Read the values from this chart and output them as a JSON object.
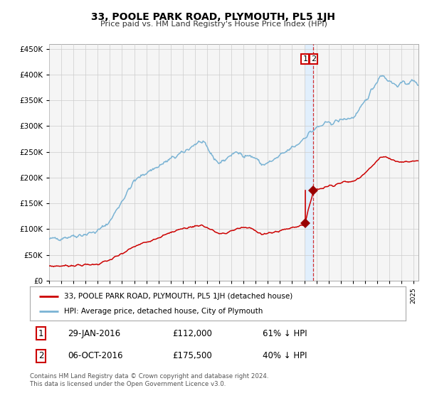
{
  "title": "33, POOLE PARK ROAD, PLYMOUTH, PL5 1JH",
  "subtitle": "Price paid vs. HM Land Registry's House Price Index (HPI)",
  "legend_label_1": "33, POOLE PARK ROAD, PLYMOUTH, PL5 1JH (detached house)",
  "legend_label_2": "HPI: Average price, detached house, City of Plymouth",
  "transaction_1_date": "29-JAN-2016",
  "transaction_1_price": "£112,000",
  "transaction_1_hpi": "61% ↓ HPI",
  "transaction_2_date": "06-OCT-2016",
  "transaction_2_price": "£175,500",
  "transaction_2_hpi": "40% ↓ HPI",
  "footer": "Contains HM Land Registry data © Crown copyright and database right 2024.\nThis data is licensed under the Open Government Licence v3.0.",
  "line_hpi_color": "#7ab3d4",
  "line_price_color": "#cc0000",
  "marker_color": "#990000",
  "vline_color": "#cc0000",
  "shade_color": "#ddeeff",
  "grid_color": "#cccccc",
  "bg_color": "#ffffff",
  "plot_bg_color": "#f5f5f5",
  "annotation_box_color": "#cc0000",
  "ylim": [
    0,
    460000
  ],
  "xlim_start": 1995.0,
  "xlim_end": 2025.4,
  "transaction_x1": 2016.08,
  "transaction_y1": 112000,
  "transaction_x2": 2016.75,
  "transaction_y2": 175500,
  "vline_x": 2016.75,
  "yticks": [
    0,
    50000,
    100000,
    150000,
    200000,
    250000,
    300000,
    350000,
    400000,
    450000
  ],
  "xtick_start": 1995,
  "xtick_end": 2025
}
